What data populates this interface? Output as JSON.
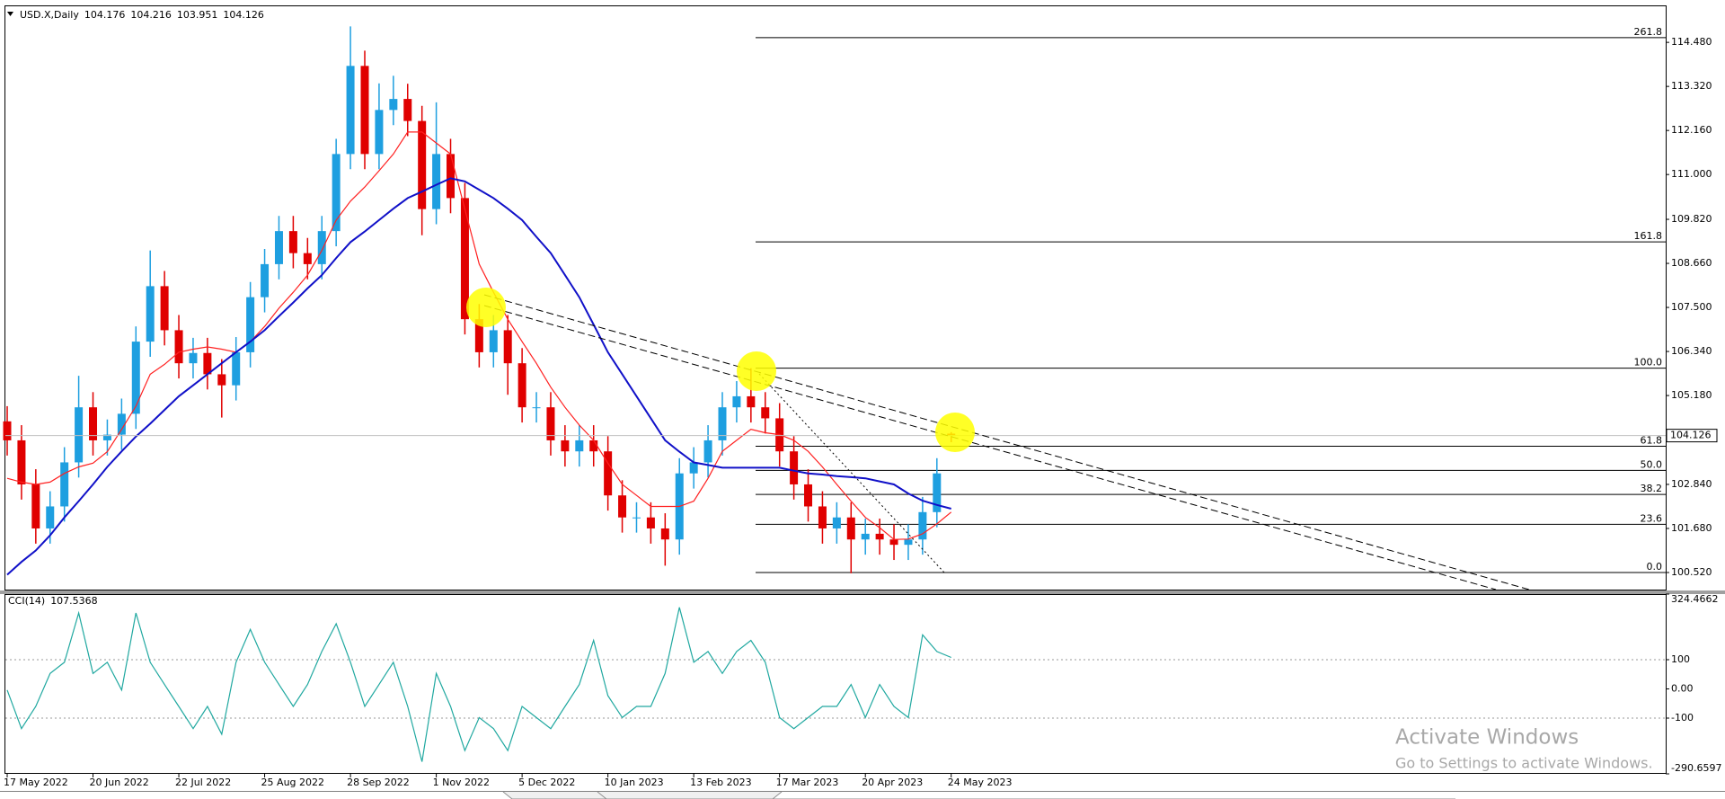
{
  "chart_data": [
    {
      "type": "candlestick",
      "title": "USD.X,Daily",
      "categories": [
        "17 May 2022",
        null,
        null,
        null,
        null,
        null,
        "20 Jun 2022",
        null,
        null,
        null,
        null,
        null,
        "22 Jul 2022",
        null,
        null,
        null,
        null,
        null,
        "25 Aug 2022",
        null,
        null,
        null,
        null,
        null,
        "28 Sep 2022",
        null,
        null,
        null,
        null,
        null,
        "1 Nov 2022",
        null,
        null,
        null,
        null,
        null,
        "5 Dec 2022",
        null,
        null,
        null,
        null,
        null,
        "10 Jan 2023",
        null,
        null,
        null,
        null,
        null,
        "13 Feb 2023",
        null,
        null,
        null,
        null,
        null,
        "17 Mar 2023",
        null,
        null,
        null,
        null,
        null,
        "20 Apr 2023",
        null,
        null,
        null,
        null,
        null,
        "24 May 2023"
      ],
      "open": [
        104.5,
        104.0,
        102.84,
        101.68,
        102.26,
        103.42,
        104.87,
        104.0,
        104.15,
        104.7,
        106.6,
        108.06,
        106.9,
        106.03,
        106.3,
        105.74,
        105.45,
        106.32,
        107.77,
        108.64,
        109.51,
        108.93,
        108.64,
        109.51,
        111.54,
        113.86,
        111.54,
        112.7,
        112.99,
        112.41,
        110.09,
        111.54,
        110.38,
        107.19,
        106.32,
        106.9,
        106.03,
        104.87,
        104.87,
        104.0,
        103.71,
        104.0,
        103.71,
        102.55,
        101.97,
        101.97,
        101.68,
        101.39,
        103.13,
        103.42,
        104.0,
        104.87,
        105.16,
        104.87,
        104.58,
        103.71,
        102.84,
        102.26,
        101.68,
        101.97,
        101.39,
        101.54,
        101.39,
        101.25,
        101.39,
        102.11,
        104.176
      ],
      "high": [
        104.9,
        104.4,
        103.24,
        102.66,
        103.82,
        105.7,
        105.27,
        104.55,
        105.1,
        107.0,
        109.0,
        108.46,
        107.3,
        106.7,
        106.7,
        106.14,
        106.72,
        108.17,
        109.04,
        109.91,
        109.91,
        109.33,
        109.91,
        111.94,
        114.9,
        114.26,
        113.4,
        113.6,
        113.39,
        112.81,
        112.9,
        111.94,
        110.78,
        107.59,
        107.3,
        107.3,
        106.43,
        105.27,
        105.27,
        104.4,
        104.4,
        104.4,
        104.11,
        102.95,
        102.37,
        102.37,
        102.08,
        103.53,
        103.82,
        104.4,
        105.27,
        105.56,
        105.9,
        105.27,
        104.98,
        104.11,
        103.24,
        102.66,
        102.37,
        102.37,
        101.94,
        101.94,
        101.79,
        101.79,
        102.51,
        103.53,
        104.216
      ],
      "low": [
        103.6,
        102.44,
        101.28,
        101.28,
        101.86,
        103.02,
        103.6,
        103.6,
        103.75,
        104.3,
        106.2,
        106.5,
        105.63,
        105.63,
        105.34,
        104.6,
        105.05,
        105.92,
        107.37,
        108.24,
        108.53,
        108.24,
        108.24,
        109.11,
        111.14,
        111.14,
        111.14,
        112.3,
        112.01,
        109.4,
        109.69,
        109.98,
        106.79,
        105.92,
        105.92,
        105.2,
        104.47,
        104.47,
        103.6,
        103.31,
        103.31,
        103.31,
        102.15,
        101.57,
        101.57,
        101.28,
        100.7,
        100.99,
        102.73,
        103.02,
        103.6,
        104.47,
        104.47,
        104.18,
        103.31,
        102.44,
        101.86,
        101.28,
        101.28,
        100.5,
        100.99,
        100.99,
        100.85,
        100.85,
        100.99,
        101.71,
        103.951
      ],
      "close": [
        104.0,
        102.84,
        101.68,
        102.26,
        103.42,
        104.87,
        104.0,
        104.15,
        104.7,
        106.6,
        108.06,
        106.9,
        106.03,
        106.3,
        105.74,
        105.45,
        106.32,
        107.77,
        108.64,
        109.51,
        108.93,
        108.64,
        109.51,
        111.54,
        113.86,
        111.54,
        112.7,
        112.99,
        112.41,
        110.09,
        111.54,
        110.38,
        107.19,
        106.32,
        106.9,
        106.03,
        104.87,
        104.87,
        104.0,
        103.71,
        104.0,
        103.71,
        102.55,
        101.97,
        101.97,
        101.68,
        101.39,
        103.13,
        103.42,
        104.0,
        104.87,
        105.16,
        104.87,
        104.58,
        103.71,
        102.84,
        102.26,
        101.68,
        101.97,
        101.39,
        101.54,
        101.39,
        101.25,
        101.39,
        102.11,
        103.13,
        104.126
      ],
      "up_color": "#1e9fe0",
      "down_color": "#e00000",
      "overlays": [
        {
          "color": "#ff2020",
          "values": [
            103.0,
            102.9,
            102.84,
            102.9,
            103.13,
            103.3,
            103.4,
            103.7,
            104.29,
            104.9,
            105.74,
            106.0,
            106.32,
            106.4,
            106.46,
            106.4,
            106.32,
            106.6,
            107.0,
            107.48,
            107.9,
            108.35,
            109.0,
            109.8,
            110.3,
            110.67,
            111.1,
            111.54,
            112.12,
            112.12,
            111.83,
            111.54,
            110.09,
            108.64,
            107.9,
            107.19,
            106.6,
            106.03,
            105.4,
            104.87,
            104.4,
            104.0,
            103.4,
            102.84,
            102.55,
            102.26,
            102.26,
            102.26,
            102.4,
            103.0,
            103.71,
            104.0,
            104.29,
            104.2,
            104.15,
            104.0,
            103.71,
            103.3,
            102.84,
            102.4,
            101.97,
            101.7,
            101.39,
            101.4,
            101.54,
            101.8,
            102.11
          ]
        },
        {
          "color": "#1010c8",
          "values": [
            100.46,
            100.8,
            101.1,
            101.5,
            101.97,
            102.4,
            102.84,
            103.3,
            103.71,
            104.1,
            104.44,
            104.8,
            105.16,
            105.45,
            105.74,
            106.03,
            106.32,
            106.6,
            106.9,
            107.27,
            107.63,
            108.0,
            108.35,
            108.8,
            109.22,
            109.5,
            109.8,
            110.1,
            110.38,
            110.55,
            110.73,
            110.9,
            110.82,
            110.6,
            110.38,
            110.1,
            109.8,
            109.36,
            108.93,
            108.35,
            107.77,
            107.05,
            106.32,
            105.74,
            105.16,
            104.58,
            104.0,
            103.7,
            103.42,
            103.35,
            103.28,
            103.28,
            103.28,
            103.28,
            103.28,
            103.2,
            103.13,
            103.1,
            103.06,
            103.03,
            103.0,
            102.92,
            102.84,
            102.6,
            102.41,
            102.3,
            102.2
          ]
        }
      ],
      "ylim": [
        100.07,
        115.43
      ],
      "yticks": [
        {
          "value": 114.48,
          "label": "114.480"
        },
        {
          "value": 113.32,
          "label": "113.320"
        },
        {
          "value": 112.16,
          "label": "112.160"
        },
        {
          "value": 111,
          "label": "111.000"
        },
        {
          "value": 109.82,
          "label": "109.820"
        },
        {
          "value": 108.66,
          "label": "108.660"
        },
        {
          "value": 107.5,
          "label": "107.500"
        },
        {
          "value": 106.34,
          "label": "106.340"
        },
        {
          "value": 105.18,
          "label": "105.180"
        },
        {
          "value": 102.84,
          "label": "102.840"
        },
        {
          "value": 101.68,
          "label": "101.680"
        },
        {
          "value": 100.52,
          "label": "100.520"
        }
      ],
      "fibonacci": {
        "low": 100.52,
        "high": 105.9,
        "levels": [
          261.8,
          161.8,
          {
            "value": 100,
            "label": "100.0"
          },
          61.8,
          {
            "value": 50,
            "label": "50.0"
          },
          38.2,
          23.6,
          {
            "value": 0,
            "label": "0.0"
          }
        ]
      }
    },
    {
      "type": "line",
      "title": "CCI(14)",
      "color": "#20a8a0",
      "values": [
        -4,
        -136,
        -60,
        53,
        91,
        260,
        53,
        91,
        -4,
        260,
        91,
        15,
        -60,
        -136,
        -60,
        -155,
        91,
        204,
        91,
        15,
        -60,
        15,
        128,
        223,
        91,
        -60,
        15,
        91,
        -60,
        -249,
        53,
        -60,
        -211,
        -98,
        -136,
        -211,
        -60,
        -98,
        -136,
        -60,
        15,
        166,
        -23,
        -98,
        -60,
        -60,
        53,
        279,
        91,
        128,
        53,
        128,
        166,
        91,
        -98,
        -136,
        -98,
        -60,
        -60,
        15,
        -98,
        15,
        -60,
        -98,
        185,
        128,
        107.5368
      ],
      "ylim": [
        -290.6597,
        324.4662
      ],
      "yticks": [
        324.4662,
        100,
        {
          "value": 0,
          "label": "0.00"
        },
        -100,
        -290.6597
      ]
    }
  ],
  "watermark": {
    "title": "Activate Windows",
    "subtitle": "Go to Settings to activate Windows."
  }
}
